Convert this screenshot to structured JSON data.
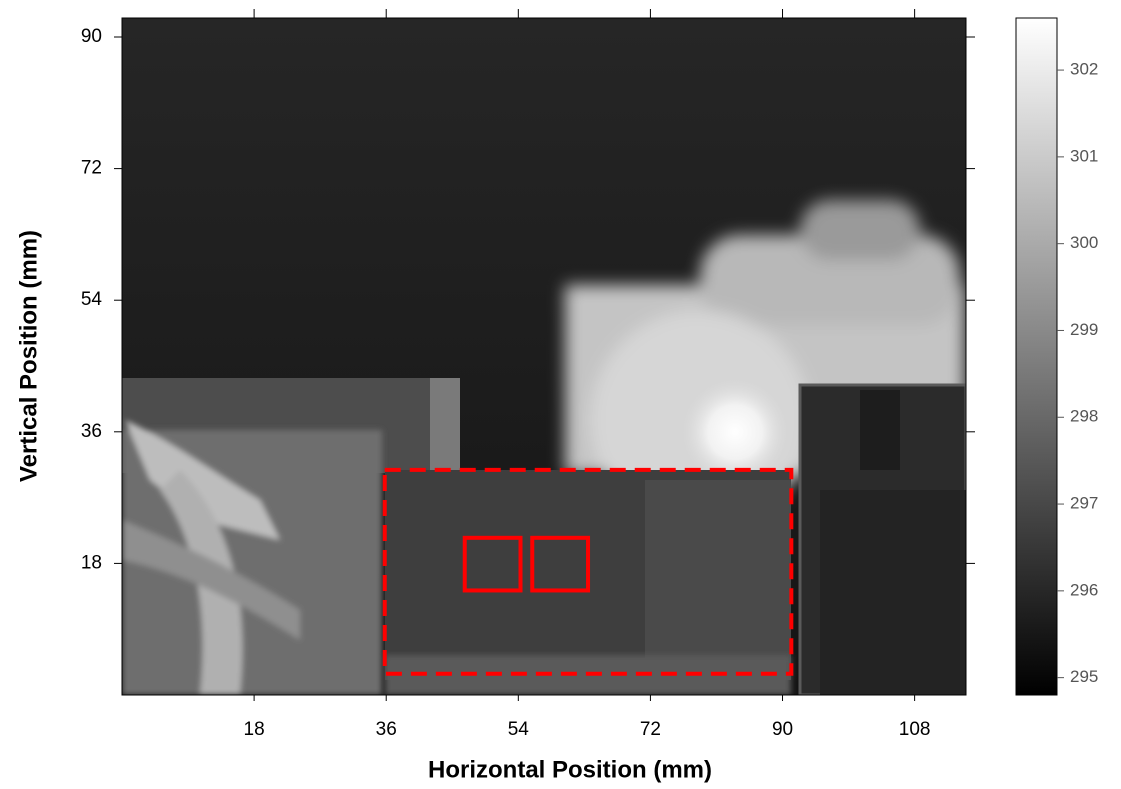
{
  "chart_data": {
    "type": "image",
    "x_label": "Horizontal Position (mm)",
    "y_label": "Vertical Position (mm)",
    "xlim": [
      0,
      115
    ],
    "xticks": [
      18,
      36,
      54,
      72,
      90,
      108
    ],
    "ylim": [
      0,
      92.6
    ],
    "yticks": [
      18,
      36,
      54,
      72,
      90
    ],
    "colorbar": {
      "clim": [
        294.8,
        302.6
      ],
      "ticks": [
        295,
        296,
        297,
        298,
        299,
        300,
        301,
        302
      ]
    },
    "regions": [
      {
        "x": [
          35.8,
          91.2
        ],
        "y": [
          2.9,
          30.8
        ],
        "color": "#ff0000",
        "style": "dashed"
      },
      {
        "x": [
          46.7,
          54.3
        ],
        "y": [
          14.3,
          21.5
        ],
        "color": "#ff0000",
        "style": "solid"
      },
      {
        "x": [
          55.9,
          63.5
        ],
        "y": [
          14.3,
          21.5
        ],
        "color": "#ff0000",
        "style": "solid"
      }
    ]
  }
}
